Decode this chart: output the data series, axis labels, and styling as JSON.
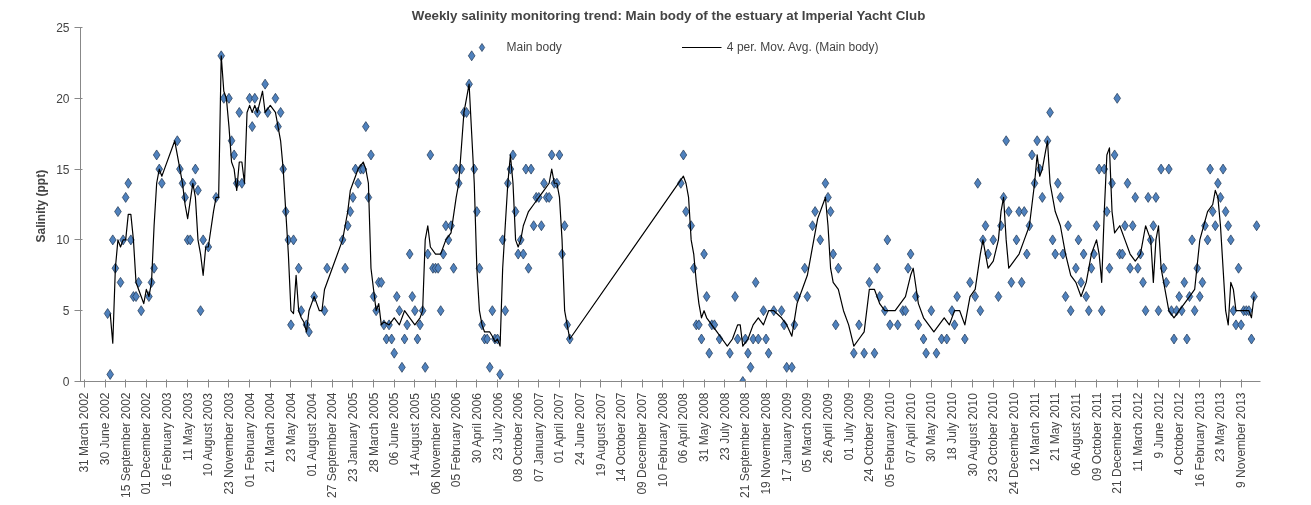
{
  "chart_data": {
    "type": "scatter",
    "title": "Weekly salinity monitoring trend: Main  body of the estuary at Imperial Yacht Club",
    "ylabel": "Salinity  (ppt)",
    "ylim": [
      0,
      25
    ],
    "yticks": [
      0,
      5,
      10,
      15,
      20,
      25
    ],
    "categories": [
      "31 March 2002",
      null,
      null,
      null,
      null,
      null,
      null,
      null,
      "30 June 2002",
      null,
      null,
      null,
      null,
      null,
      null,
      null,
      "15 September 2002",
      null,
      null,
      null,
      null,
      null,
      null,
      null,
      "01 December 2002",
      null,
      null,
      null,
      null,
      null,
      null,
      null,
      "16 February 2003",
      null,
      null,
      null,
      null,
      null,
      null,
      null,
      "11 May 2003",
      null,
      null,
      null,
      null,
      null,
      null,
      null,
      "10 August 2003",
      null,
      null,
      null,
      null,
      null,
      null,
      null,
      "23 November 2003",
      null,
      null,
      null,
      null,
      null,
      null,
      null,
      "01 February 2004",
      null,
      null,
      null,
      null,
      null,
      null,
      null,
      "21 March 2004",
      null,
      null,
      null,
      null,
      null,
      null,
      null,
      "23 May 2004",
      null,
      null,
      null,
      null,
      null,
      null,
      null,
      "01 August 2004",
      null,
      null,
      null,
      null,
      null,
      null,
      null,
      "27 September 2004",
      null,
      null,
      null,
      null,
      null,
      null,
      null,
      "23 January 2005",
      null,
      null,
      null,
      null,
      null,
      null,
      null,
      "28 March 2005",
      null,
      null,
      null,
      null,
      null,
      null,
      null,
      "06 June 2005",
      null,
      null,
      null,
      null,
      null,
      null,
      null,
      "14 August 2005",
      null,
      null,
      null,
      null,
      null,
      null,
      null,
      "06 November 2005",
      null,
      null,
      null,
      null,
      null,
      null,
      null,
      "05 February 2006",
      null,
      null,
      null,
      null,
      null,
      null,
      null,
      "30 April 2006",
      null,
      null,
      null,
      null,
      null,
      null,
      null,
      "23 July 2006",
      null,
      null,
      null,
      null,
      null,
      null,
      null,
      "08 October 2006",
      null,
      null,
      null,
      null,
      null,
      null,
      null,
      "07 January 2007",
      null,
      null,
      null,
      null,
      null,
      null,
      null,
      "01 April 2007",
      null,
      null,
      null,
      null,
      null,
      null,
      null,
      "24 June 2007",
      null,
      null,
      null,
      null,
      null,
      null,
      null,
      "19 August 2007",
      null,
      null,
      null,
      null,
      null,
      null,
      null,
      "14 October 2007",
      null,
      null,
      null,
      null,
      null,
      null,
      null,
      "09 December 2007",
      null,
      null,
      null,
      null,
      null,
      null,
      null,
      "10 February 2008",
      null,
      null,
      null,
      null,
      null,
      null,
      null,
      "06 April 2008",
      null,
      null,
      null,
      null,
      null,
      null,
      null,
      "31 May 2008",
      null,
      null,
      null,
      null,
      null,
      null,
      null,
      "23 July 2008",
      null,
      null,
      null,
      null,
      null,
      null,
      null,
      "21 September 2008",
      null,
      null,
      null,
      null,
      null,
      null,
      null,
      "19 November 2008",
      null,
      null,
      null,
      null,
      null,
      null,
      null,
      "17 January 2009",
      null,
      null,
      null,
      null,
      null,
      null,
      null,
      "05 March 2009",
      null,
      null,
      null,
      null,
      null,
      null,
      null,
      "26 April 2009",
      null,
      null,
      null,
      null,
      null,
      null,
      null,
      "01 July 2009",
      null,
      null,
      null,
      null,
      null,
      null,
      null,
      "24 October 2009",
      null,
      null,
      null,
      null,
      null,
      null,
      null,
      "05 February 2010",
      null,
      null,
      null,
      null,
      null,
      null,
      null,
      "07 April 2010",
      null,
      null,
      null,
      null,
      null,
      null,
      null,
      "30 May 2010",
      null,
      null,
      null,
      null,
      null,
      null,
      null,
      "18 July 2010",
      null,
      null,
      null,
      null,
      null,
      null,
      null,
      "30 August 2010",
      null,
      null,
      null,
      null,
      null,
      null,
      null,
      "23 October 2010",
      null,
      null,
      null,
      null,
      null,
      null,
      null,
      "24 December 2010",
      null,
      null,
      null,
      null,
      null,
      null,
      null,
      "12 March 2011",
      null,
      null,
      null,
      null,
      null,
      null,
      null,
      "21 May 2011",
      null,
      null,
      null,
      null,
      null,
      null,
      null,
      "06 August 2011",
      null,
      null,
      null,
      null,
      null,
      null,
      null,
      "09 October 2011",
      null,
      null,
      null,
      null,
      null,
      null,
      null,
      "21 December 2011",
      null,
      null,
      null,
      null,
      null,
      null,
      null,
      "11 March 2012",
      null,
      null,
      null,
      null,
      null,
      null,
      null,
      "9 June 2012",
      null,
      null,
      null,
      null,
      null,
      null,
      null,
      "4 October 2012",
      null,
      null,
      null,
      null,
      null,
      null,
      null,
      "16 February 2013",
      null,
      null,
      null,
      null,
      null,
      null,
      null,
      "23 May 2013",
      null,
      null,
      null,
      null,
      null,
      null,
      null,
      "9 November 2013",
      null,
      null,
      null,
      null,
      null,
      null,
      null
    ],
    "grid": false,
    "legend": "top",
    "series": [
      {
        "name": "Main body",
        "marker": "diamond",
        "color": "#4f81bd",
        "values": [
          null,
          null,
          null,
          null,
          null,
          null,
          null,
          null,
          null,
          4.8,
          0.5,
          10,
          8,
          12,
          7,
          10,
          13,
          14,
          10,
          6,
          6,
          7,
          5,
          null,
          null,
          6,
          7,
          8,
          16,
          15,
          14,
          null,
          null,
          null,
          null,
          null,
          17,
          15,
          14,
          13,
          10,
          10,
          14,
          15,
          13.5,
          5,
          10,
          null,
          9.5,
          null,
          null,
          13,
          null,
          23,
          20,
          null,
          20,
          17,
          16,
          14,
          19,
          14,
          null,
          null,
          20,
          18,
          20,
          19,
          null,
          null,
          21,
          19,
          null,
          null,
          20,
          18,
          19,
          15,
          12,
          10,
          4,
          10,
          null,
          8,
          5,
          null,
          4,
          3.5,
          null,
          6,
          null,
          null,
          null,
          5,
          8,
          null,
          null,
          null,
          null,
          null,
          10,
          8,
          11,
          12,
          13,
          15,
          14,
          15,
          15,
          18,
          13,
          16,
          6,
          5,
          7,
          7,
          4,
          3,
          4,
          3,
          2,
          6,
          5,
          1,
          3,
          4,
          9,
          6,
          5,
          3,
          4,
          5,
          1,
          9,
          16,
          8,
          8,
          8,
          5,
          9,
          11,
          10,
          11,
          8,
          15,
          14,
          15,
          19,
          19,
          21,
          23,
          15,
          12,
          8,
          4,
          3,
          3,
          1,
          5,
          3,
          3,
          0.5,
          10,
          5,
          14,
          15,
          16,
          12,
          9,
          10,
          9,
          15,
          8,
          15,
          11,
          13,
          13,
          11,
          14,
          13,
          13,
          16,
          14,
          14,
          16,
          9,
          11,
          4,
          3,
          null,
          null,
          null,
          null,
          null,
          null,
          null,
          null,
          null,
          null,
          null,
          null,
          null,
          null,
          null,
          null,
          null,
          null,
          null,
          null,
          null,
          null,
          null,
          null,
          null,
          null,
          null,
          null,
          null,
          null,
          null,
          null,
          null,
          null,
          null,
          null,
          null,
          null,
          null,
          null,
          null,
          null,
          14,
          16,
          12,
          null,
          11,
          8,
          4,
          4,
          3,
          9,
          6,
          2,
          4,
          4,
          null,
          3,
          null,
          null,
          null,
          2,
          null,
          6,
          3,
          null,
          0,
          3,
          2,
          1,
          3,
          7,
          3,
          null,
          5,
          3,
          2,
          null,
          5,
          null,
          null,
          5,
          4,
          1,
          null,
          1,
          4,
          6,
          null,
          null,
          8,
          6,
          null,
          11,
          12,
          null,
          10,
          null,
          14,
          13,
          12,
          9,
          4,
          8,
          null,
          null,
          null,
          null,
          null,
          2,
          null,
          4,
          null,
          2,
          null,
          7,
          null,
          2,
          8,
          6,
          null,
          5,
          10,
          4,
          null,
          null,
          4,
          null,
          5,
          5,
          8,
          9,
          null,
          6,
          4,
          null,
          3,
          2,
          null,
          5,
          null,
          2,
          null,
          3,
          null,
          3,
          null,
          5,
          4,
          6,
          null,
          null,
          3,
          null,
          7,
          null,
          6,
          14,
          5,
          10,
          11,
          9,
          null,
          10,
          null,
          6,
          11,
          13,
          17,
          12,
          7,
          null,
          10,
          12,
          7,
          12,
          9,
          11,
          16,
          14,
          17,
          15,
          13,
          null,
          17,
          19,
          10,
          9,
          14,
          13,
          9,
          6,
          11,
          5,
          null,
          8,
          10,
          7,
          9,
          6,
          5,
          8,
          9,
          11,
          15,
          5,
          15,
          12,
          8,
          14,
          16,
          20,
          9,
          9,
          11,
          14,
          8,
          11,
          13,
          8,
          9,
          7,
          5,
          13,
          10,
          11,
          13,
          5,
          15,
          8,
          7,
          15,
          5,
          3,
          5,
          6,
          5,
          7,
          3,
          6,
          10,
          5,
          8,
          6,
          7,
          11,
          10,
          15,
          12,
          11,
          14,
          13,
          15,
          12,
          11,
          10,
          5,
          4,
          8,
          4,
          5,
          5,
          5,
          3,
          6,
          11,
          null
        ]
      },
      {
        "name": "4 per. Mov. Avg. (Main body)",
        "type": "line",
        "marker": "none",
        "line_style": "solid",
        "color": "#000000",
        "values": [
          null,
          null,
          null,
          null,
          null,
          null,
          null,
          null,
          null,
          null,
          4.8,
          2.7,
          8,
          10,
          9.5,
          10,
          10,
          11.8,
          11.8,
          10,
          7,
          6.5,
          6,
          5.5,
          6.5,
          6,
          7,
          11,
          14,
          15,
          14.5,
          15,
          null,
          null,
          null,
          17,
          null,
          15,
          14,
          12.5,
          11.5,
          null,
          14,
          13,
          10,
          9,
          7.5,
          9.5,
          9.5,
          null,
          12,
          13,
          13,
          23,
          20.5,
          20,
          18,
          15.5,
          15,
          13.5,
          15.5,
          15.5,
          14,
          19,
          19.5,
          19,
          19.5,
          19,
          null,
          20.5,
          19,
          null,
          19.5,
          null,
          19,
          null,
          17,
          15,
          12,
          9,
          5,
          4.8,
          7.5,
          5,
          4.5,
          4.2,
          3.5,
          5,
          5.5,
          6,
          5.5,
          5,
          5,
          6.5,
          null,
          null,
          8,
          null,
          null,
          null,
          10,
          11,
          12,
          13.5,
          14,
          14.5,
          15,
          null,
          15.5,
          15,
          14,
          8,
          6.5,
          5,
          5.5,
          4,
          4.2,
          null,
          4,
          null,
          4.5,
          null,
          4,
          null,
          5,
          null,
          4.5,
          null,
          4,
          null,
          4.5,
          5,
          10,
          11,
          9.5,
          null,
          9,
          null,
          9,
          null,
          10,
          null,
          10.5,
          null,
          13,
          14,
          null,
          19,
          20,
          21,
          17.5,
          14,
          8,
          5,
          4,
          3.5,
          null,
          3.5,
          3.2,
          2.8,
          3,
          2.5,
          8,
          11,
          14,
          16,
          14,
          10,
          9.5,
          10,
          11,
          11.5,
          12,
          null,
          12.5,
          null,
          13,
          null,
          13.5,
          null,
          14,
          15,
          14,
          14,
          13,
          10,
          5,
          4,
          3,
          null,
          null,
          null,
          null,
          null,
          null,
          null,
          null,
          null,
          null,
          null,
          null,
          null,
          null,
          null,
          null,
          null,
          null,
          null,
          null,
          null,
          null,
          null,
          null,
          null,
          null,
          null,
          null,
          null,
          null,
          null,
          null,
          null,
          null,
          null,
          null,
          null,
          null,
          null,
          null,
          null,
          null,
          null,
          14.5,
          14,
          13,
          10,
          9,
          7,
          5.5,
          4.5,
          5,
          4.5,
          null,
          4,
          null,
          3.5,
          null,
          3,
          null,
          2.5,
          null,
          3,
          null,
          4,
          4,
          2.5,
          null,
          3,
          null,
          4,
          null,
          4.5,
          null,
          4,
          null,
          5,
          null,
          5,
          null,
          null,
          4.5,
          null,
          4,
          null,
          3.2,
          null,
          5.5,
          null,
          6.5,
          null,
          7.5,
          null,
          9.5,
          null,
          11.5,
          null,
          12.5,
          13,
          11,
          8,
          7,
          null,
          6.5,
          null,
          5,
          null,
          4,
          null,
          2.5,
          null,
          3,
          null,
          3.5,
          null,
          6.5,
          null,
          6.5,
          null,
          5.5,
          null,
          5,
          null,
          5,
          null,
          5,
          null,
          5.5,
          null,
          6,
          null,
          7.5,
          8,
          null,
          5.5,
          null,
          4.5,
          null,
          4,
          null,
          3.5,
          null,
          4,
          null,
          4.5,
          null,
          4,
          null,
          5,
          null,
          5,
          null,
          4,
          null,
          6,
          null,
          6.5,
          null,
          9,
          10,
          9,
          8,
          null,
          8.5,
          null,
          10,
          12,
          13,
          10,
          8,
          null,
          8.5,
          null,
          9,
          null,
          10,
          null,
          11,
          null,
          14,
          16,
          14.5,
          15,
          16,
          17,
          14,
          null,
          12,
          null,
          11,
          null,
          9,
          null,
          7.5,
          null,
          7,
          null,
          6,
          null,
          7,
          null,
          9,
          null,
          10,
          9,
          7,
          12,
          16,
          16.5,
          12,
          10.5,
          null,
          11,
          null,
          10,
          null,
          9,
          null,
          8.5,
          null,
          9,
          null,
          11,
          null,
          10,
          7,
          10,
          11,
          8,
          null,
          null,
          5,
          null,
          4.5,
          null,
          5,
          null,
          5.5,
          null,
          6,
          null,
          6.5,
          null,
          10,
          null,
          null,
          12,
          null,
          12.5,
          13.5,
          13,
          11,
          8,
          5,
          4,
          7,
          6.5,
          5,
          null,
          null,
          5,
          null,
          5,
          4.5,
          6,
          null,
          null
        ]
      }
    ]
  }
}
